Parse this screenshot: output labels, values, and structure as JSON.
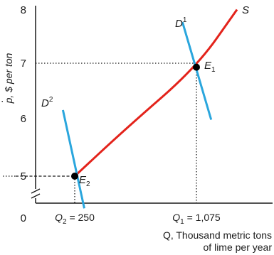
{
  "chart_data": {
    "type": "line",
    "ylabel": "p, $ per ton",
    "ylabel_accent": "·",
    "xlabel_line1": "Q, Thousand metric tons",
    "xlabel_line2": "of lime per year",
    "yticks": [
      "8",
      "7",
      "6",
      "5"
    ],
    "origin_label": "0",
    "x_marked": [
      {
        "label_var": "Q",
        "label_sub": "2",
        "label_rest": " = 250",
        "value": 250
      },
      {
        "label_var": "Q",
        "label_sub": "1",
        "label_rest": " = 1,075",
        "value": 1075
      }
    ],
    "colors": {
      "supply": "#e3231b",
      "demand": "#2aa6dd",
      "axes": "#1a1a1a",
      "points": "#000000"
    },
    "series": [
      {
        "name": "S",
        "color": "#e3231b",
        "points": [
          [
            250,
            5
          ],
          [
            600,
            5.85
          ],
          [
            1075,
            6.93
          ],
          [
            1350,
            7.95
          ]
        ]
      },
      {
        "name": "D",
        "name_sup": "1",
        "color": "#2aa6dd",
        "points": [
          [
            980,
            7.73
          ],
          [
            1175,
            6.0
          ]
        ]
      },
      {
        "name": "D",
        "name_sup": "2",
        "color": "#2aa6dd",
        "points": [
          [
            170,
            6.17
          ],
          [
            315,
            4.43
          ]
        ]
      }
    ],
    "equilibria": [
      {
        "label": "E",
        "sub": "1",
        "x": 1075,
        "y": 6.93
      },
      {
        "label": "E",
        "sub": "2",
        "x": 250,
        "y": 5
      }
    ],
    "ylim": [
      4.4,
      8.05
    ],
    "xlim": [
      0,
      1500
    ]
  }
}
